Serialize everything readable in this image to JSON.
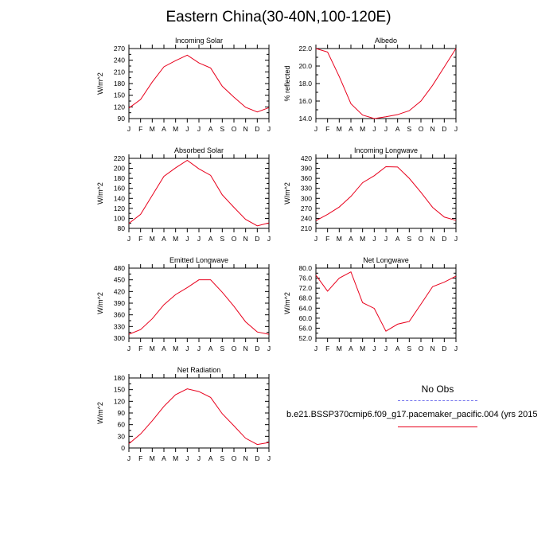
{
  "title": "Eastern China(30-40N,100-120E)",
  "legend": {
    "obs_label": "No Obs",
    "obs_color": "#7a7aee",
    "model_label": "b.e21.BSSP370cmip6.f09_g17.pacemaker_pacific.004 (yrs 2015",
    "model_color": "#e8001c"
  },
  "chart_data": [
    {
      "type": "line",
      "title": "Incoming Solar",
      "ylabel": "W/m^2",
      "x": [
        "J",
        "F",
        "M",
        "A",
        "M",
        "J",
        "J",
        "A",
        "S",
        "O",
        "N",
        "D",
        "J"
      ],
      "ylim": [
        90,
        270
      ],
      "yticks": [
        90,
        120,
        150,
        180,
        210,
        240,
        270
      ],
      "ytick_labels": [
        "90",
        "120",
        "150",
        "180",
        "210",
        "240",
        "270"
      ],
      "series": [
        {
          "values": [
            117,
            139,
            184,
            223,
            239,
            253,
            233,
            220,
            173,
            145,
            119,
            107,
            118
          ],
          "color": "#e8001c"
        }
      ]
    },
    {
      "type": "line",
      "title": "Albedo",
      "ylabel": "% reflected",
      "x": [
        "J",
        "F",
        "M",
        "A",
        "M",
        "J",
        "J",
        "A",
        "S",
        "O",
        "N",
        "D",
        "J"
      ],
      "ylim": [
        14,
        22
      ],
      "yticks": [
        14,
        16,
        18,
        20,
        22
      ],
      "ytick_labels": [
        "14.0",
        "16.0",
        "18.0",
        "20.0",
        "22.0"
      ],
      "series": [
        {
          "values": [
            22.0,
            21.6,
            18.8,
            15.7,
            14.4,
            14.0,
            14.2,
            14.45,
            14.9,
            16.0,
            17.8,
            19.9,
            22.0
          ],
          "color": "#e8001c"
        }
      ]
    },
    {
      "type": "line",
      "title": "Absorbed Solar",
      "ylabel": "W/m^2",
      "x": [
        "J",
        "F",
        "M",
        "A",
        "M",
        "J",
        "J",
        "A",
        "S",
        "O",
        "N",
        "D",
        "J"
      ],
      "ylim": [
        80,
        220
      ],
      "yticks": [
        80,
        100,
        120,
        140,
        160,
        180,
        200,
        220
      ],
      "ytick_labels": [
        "80",
        "100",
        "120",
        "140",
        "160",
        "180",
        "200",
        "220"
      ],
      "series": [
        {
          "values": [
            90,
            108,
            146,
            184,
            201,
            216,
            199,
            186,
            147,
            122,
            98,
            85,
            91
          ],
          "color": "#e8001c"
        }
      ]
    },
    {
      "type": "line",
      "title": "Incoming Longwave",
      "ylabel": "W/m^2",
      "x": [
        "J",
        "F",
        "M",
        "A",
        "M",
        "J",
        "J",
        "A",
        "S",
        "O",
        "N",
        "D",
        "J"
      ],
      "ylim": [
        210,
        420
      ],
      "yticks": [
        210,
        240,
        270,
        300,
        330,
        360,
        390,
        420
      ],
      "ytick_labels": [
        "210",
        "240",
        "270",
        "300",
        "330",
        "360",
        "390",
        "420"
      ],
      "series": [
        {
          "values": [
            233,
            252,
            274,
            306,
            347,
            368,
            395,
            394,
            360,
            318,
            273,
            244,
            234
          ],
          "color": "#e8001c"
        }
      ]
    },
    {
      "type": "line",
      "title": "Emitted Longwave",
      "ylabel": "W/m^2",
      "x": [
        "J",
        "F",
        "M",
        "A",
        "M",
        "J",
        "J",
        "A",
        "S",
        "O",
        "N",
        "D",
        "J"
      ],
      "ylim": [
        300,
        480
      ],
      "yticks": [
        300,
        330,
        360,
        390,
        420,
        450,
        480
      ],
      "ytick_labels": [
        "300",
        "330",
        "360",
        "390",
        "420",
        "450",
        "480"
      ],
      "series": [
        {
          "values": [
            310,
            322,
            350,
            386,
            412,
            430,
            450,
            450,
            418,
            382,
            342,
            316,
            310
          ],
          "color": "#e8001c"
        }
      ]
    },
    {
      "type": "line",
      "title": "Net Longwave",
      "ylabel": "W/m^2",
      "x": [
        "J",
        "F",
        "M",
        "A",
        "M",
        "J",
        "J",
        "A",
        "S",
        "O",
        "N",
        "D",
        "J"
      ],
      "ylim": [
        52,
        80
      ],
      "yticks": [
        52,
        56,
        60,
        64,
        68,
        72,
        76,
        80
      ],
      "ytick_labels": [
        "52.0",
        "56.0",
        "60.0",
        "64.0",
        "68.0",
        "72.0",
        "76.0",
        "80.0"
      ],
      "series": [
        {
          "values": [
            77.2,
            70.8,
            76.0,
            78.5,
            66.2,
            63.9,
            54.8,
            57.6,
            58.7,
            65.6,
            72.6,
            74.4,
            76.8
          ],
          "color": "#e8001c"
        }
      ]
    },
    {
      "type": "line",
      "title": "Net Radiation",
      "ylabel": "W/m^2",
      "x": [
        "J",
        "F",
        "M",
        "A",
        "M",
        "J",
        "J",
        "A",
        "S",
        "O",
        "N",
        "D",
        "J"
      ],
      "ylim": [
        0,
        180
      ],
      "yticks": [
        0,
        30,
        60,
        90,
        120,
        150,
        180
      ],
      "ytick_labels": [
        "0",
        "30",
        "60",
        "90",
        "120",
        "150",
        "180"
      ],
      "series": [
        {
          "values": [
            11,
            36,
            70,
            107,
            137,
            152,
            145,
            130,
            88,
            57,
            25,
            9,
            14
          ],
          "color": "#e8001c"
        }
      ]
    }
  ]
}
